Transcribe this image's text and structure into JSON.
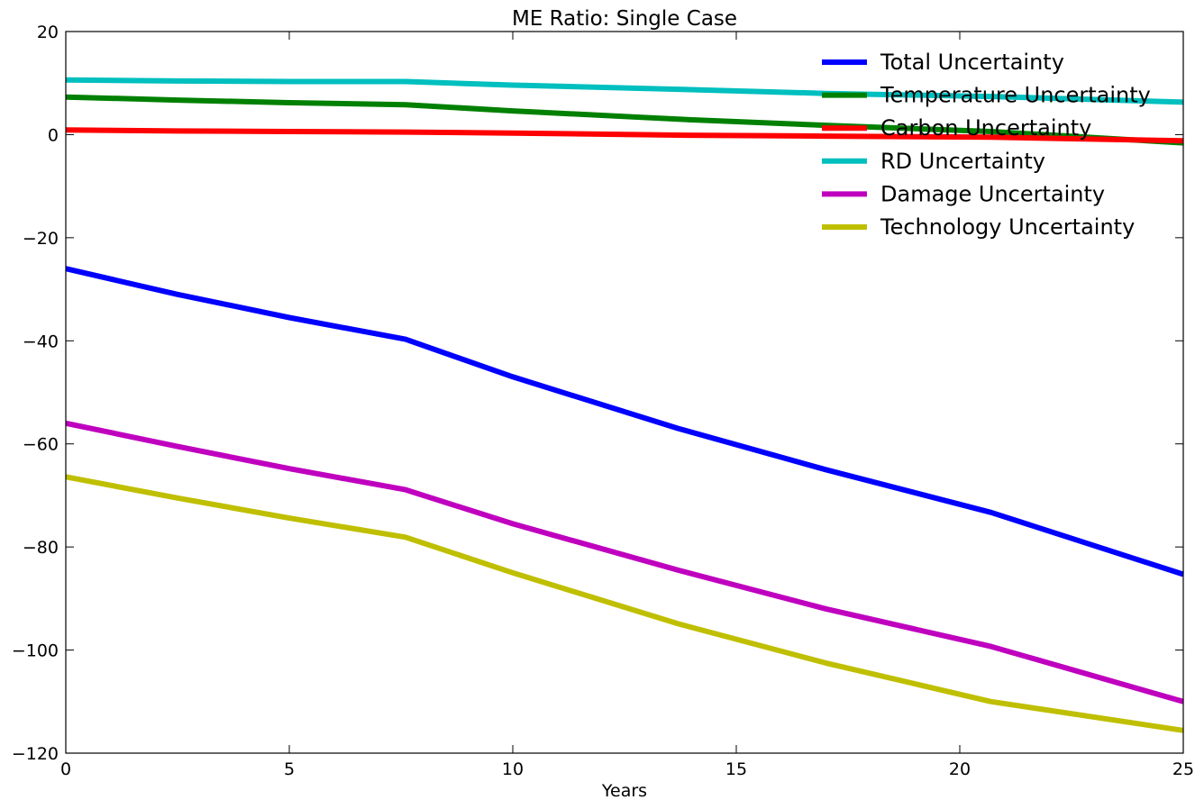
{
  "chart_data": {
    "type": "line",
    "title": "ME Ratio: Single Case",
    "xlabel": "Years",
    "ylabel": "",
    "xlim": [
      0,
      25
    ],
    "ylim": [
      -120,
      20
    ],
    "xticks": [
      0,
      5,
      10,
      15,
      20,
      25
    ],
    "yticks": [
      20,
      0,
      -20,
      -40,
      -60,
      -80,
      -100,
      -120
    ],
    "xtick_labels": [
      "0",
      "5",
      "10",
      "15",
      "20",
      "25"
    ],
    "ytick_labels": [
      "20",
      "0",
      "−20",
      "−40",
      "−60",
      "−80",
      "−100",
      "−120"
    ],
    "grid": false,
    "legend_position": "top-right",
    "series": [
      {
        "name": "Total Uncertainty",
        "color": "#0000ff",
        "x": [
          0,
          2.5,
          5,
          7.6,
          10,
          13.7,
          17,
          20.7,
          25
        ],
        "y": [
          -26,
          -31,
          -35.5,
          -39.7,
          -47,
          -57,
          -65,
          -73.3,
          -85.3
        ]
      },
      {
        "name": "Temperature Uncertainty",
        "color": "#008000",
        "x": [
          0,
          2.5,
          5,
          7.6,
          10,
          13.7,
          17,
          20.7,
          25
        ],
        "y": [
          7.3,
          6.7,
          6.2,
          5.8,
          4.6,
          3.0,
          1.8,
          0.6,
          -1.6
        ]
      },
      {
        "name": "Carbon Uncertainty",
        "color": "#ff0000",
        "x": [
          0,
          2.5,
          5,
          7.6,
          10,
          13.7,
          17,
          20.7,
          25
        ],
        "y": [
          0.9,
          0.7,
          0.6,
          0.5,
          0.3,
          -0.1,
          -0.3,
          -0.5,
          -1.2
        ]
      },
      {
        "name": "RD Uncertainty",
        "color": "#00bfbf",
        "x": [
          0,
          2.5,
          5,
          7.6,
          10,
          13.7,
          17,
          20.7,
          25
        ],
        "y": [
          10.6,
          10.4,
          10.3,
          10.3,
          9.6,
          8.8,
          8.0,
          7.4,
          6.3
        ]
      },
      {
        "name": "Damage Uncertainty",
        "color": "#bf00bf",
        "x": [
          0,
          2.5,
          5,
          7.6,
          10,
          13.7,
          17,
          20.7,
          25
        ],
        "y": [
          -56,
          -60.5,
          -64.8,
          -68.9,
          -75.5,
          -84.5,
          -92,
          -99.3,
          -110
        ]
      },
      {
        "name": "Technology Uncertainty",
        "color": "#bfbf00",
        "x": [
          0,
          2.5,
          5,
          7.6,
          10,
          13.7,
          17,
          20.7,
          25
        ],
        "y": [
          -66.4,
          -70.5,
          -74.4,
          -78.1,
          -85,
          -94.9,
          -102.5,
          -110,
          -115.6
        ]
      }
    ]
  }
}
